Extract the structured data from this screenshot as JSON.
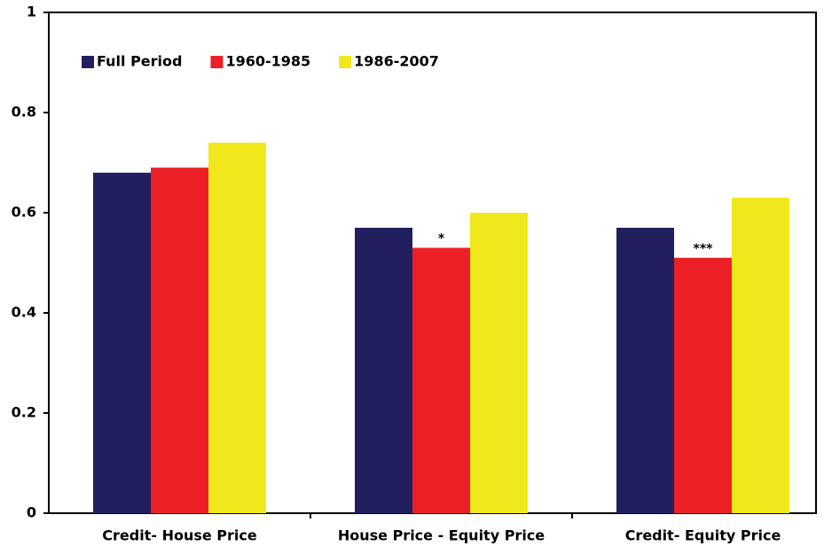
{
  "chart_data": {
    "type": "bar",
    "categories": [
      "Credit- House Price",
      "House Price - Equity Price",
      "Credit- Equity Price"
    ],
    "series": [
      {
        "name": "Full Period",
        "color": "#221f5f",
        "values": [
          0.68,
          0.57,
          0.57
        ]
      },
      {
        "name": "1960-1985",
        "color": "#ed2027",
        "values": [
          0.69,
          0.53,
          0.51
        ],
        "markers": [
          null,
          "*",
          "***"
        ]
      },
      {
        "name": "1986-2007",
        "color": "#f1e81c",
        "values": [
          0.74,
          0.6,
          0.63
        ]
      }
    ],
    "ylim": [
      0,
      1
    ],
    "yticks": [
      0,
      0.2,
      0.4,
      0.6,
      0.8,
      1
    ],
    "grid": false,
    "legend": "top-left"
  }
}
